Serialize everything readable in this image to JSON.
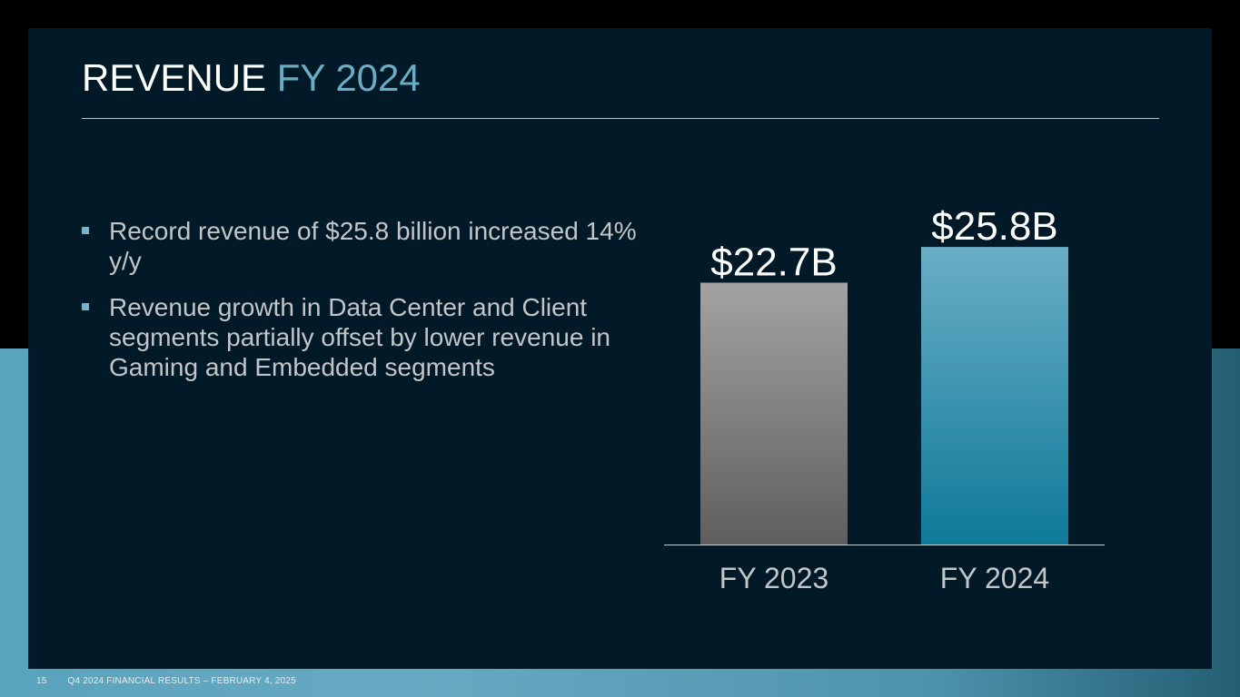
{
  "slide": {
    "title_main": "REVENUE",
    "title_accent": "FY 2024",
    "bullets": [
      "Record revenue of $25.8 billion increased 14% y/y",
      "Revenue growth in Data Center and Client segments partially offset by lower revenue in Gaming and Embedded segments"
    ]
  },
  "footer": {
    "page_number": "15",
    "text": "Q4 2024 FINANCIAL RESULTS – FEBRUARY 4, 2025"
  },
  "colors": {
    "title_accent": "#6aaec6",
    "bar_fy2023_top": "#a3a3a3",
    "bar_fy2023_bottom": "#5e5e5e",
    "bar_fy2024_top": "#6aaec6",
    "bar_fy2024_bottom": "#0e7a99"
  },
  "chart_data": {
    "type": "bar",
    "categories": [
      "FY 2023",
      "FY 2024"
    ],
    "values": [
      22.7,
      25.8
    ],
    "data_labels": [
      "$22.7B",
      "$25.8B"
    ],
    "title": "",
    "xlabel": "",
    "ylabel": "",
    "ylim": [
      0,
      30
    ],
    "grid": false
  }
}
